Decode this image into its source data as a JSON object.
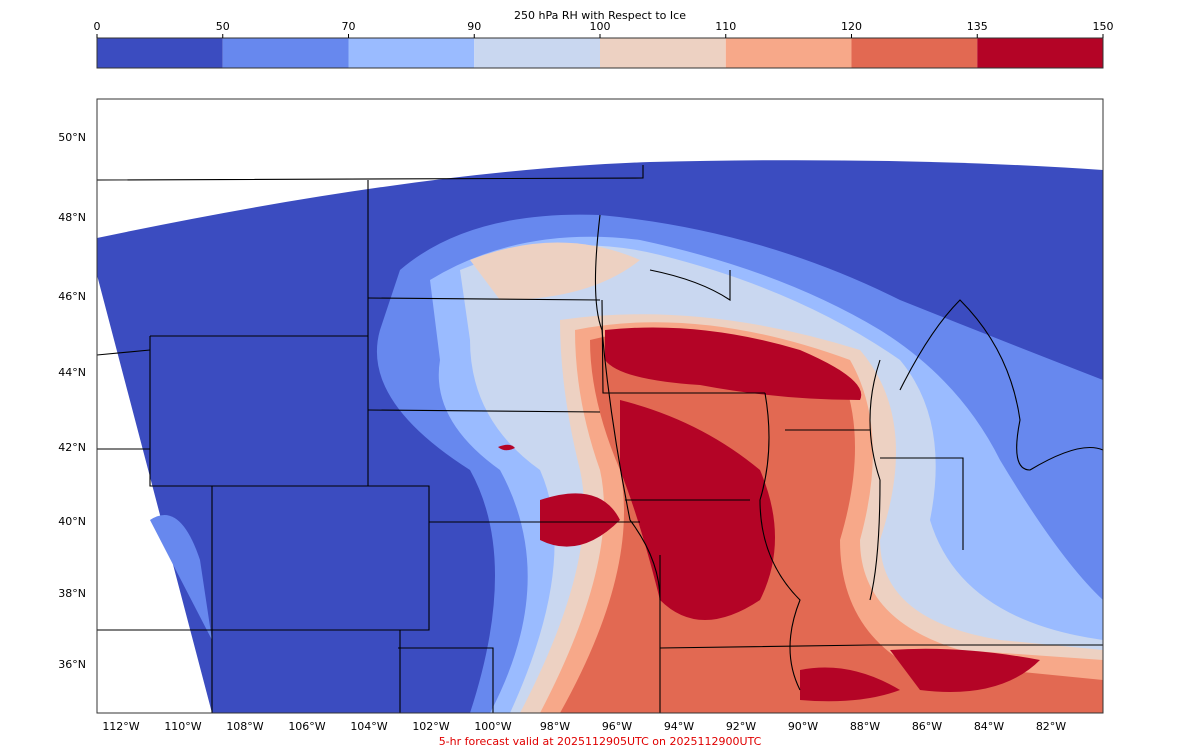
{
  "colorbar": {
    "title": "250 hPa RH with Respect to Ice",
    "ticks": [
      0,
      50,
      70,
      90,
      100,
      110,
      120,
      135,
      150
    ],
    "colors": [
      "#3b4cc0",
      "#6788ee",
      "#9abbff",
      "#c9d7f0",
      "#edd1c2",
      "#f7a889",
      "#e26952",
      "#b40426"
    ]
  },
  "map": {
    "lat_labels": [
      "50°N",
      "48°N",
      "46°N",
      "44°N",
      "42°N",
      "40°N",
      "38°N",
      "36°N"
    ],
    "lon_labels": [
      "112°W",
      "110°W",
      "108°W",
      "106°W",
      "104°W",
      "102°W",
      "100°W",
      "98°W",
      "96°W",
      "94°W",
      "92°W",
      "90°W",
      "88°W",
      "86°W",
      "84°W",
      "82°W"
    ]
  },
  "footer": "5-hr forecast valid at 2025112905UTC on 2025112900UTC"
}
